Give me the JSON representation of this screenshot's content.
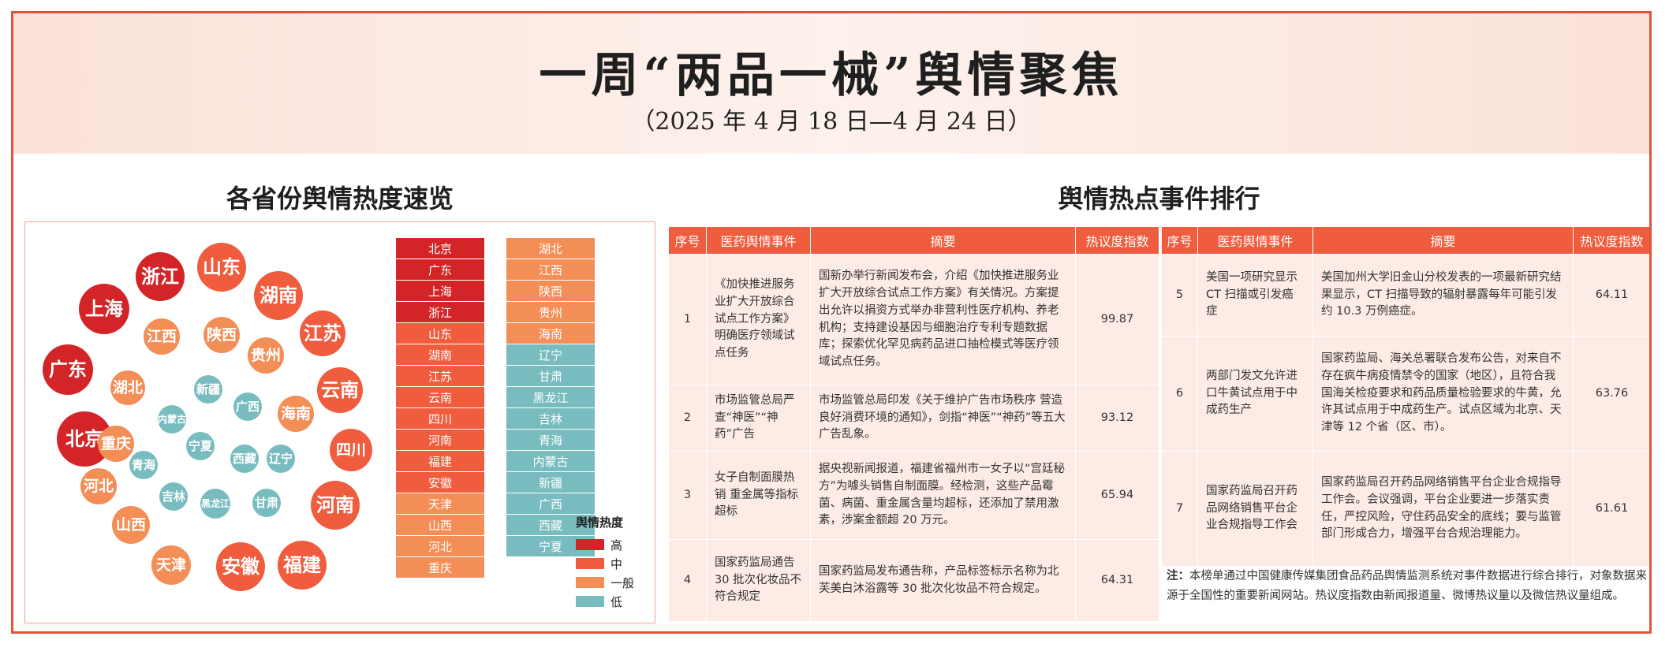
{
  "header": {
    "title": "一周“两品一械”舆情聚焦",
    "date_range": "（2025 年 4 月 18 日—4 月 24 日）"
  },
  "left": {
    "title": "各省份舆情热度速览"
  },
  "right": {
    "title": "舆情热点事件排行"
  },
  "legend": {
    "title": "舆情热度",
    "items": [
      {
        "label": "高",
        "color": "#d32528"
      },
      {
        "label": "中",
        "color": "#ef5c3e"
      },
      {
        "label": "一般",
        "color": "#f48e57"
      },
      {
        "label": "低",
        "color": "#78bcbf"
      }
    ]
  },
  "bubbles": [
    {
      "name": "北京",
      "level": "high"
    },
    {
      "name": "广东",
      "level": "high"
    },
    {
      "name": "上海",
      "level": "high"
    },
    {
      "name": "浙江",
      "level": "high"
    },
    {
      "name": "山东",
      "level": "mid"
    },
    {
      "name": "湖南",
      "level": "mid"
    },
    {
      "name": "江苏",
      "level": "mid"
    },
    {
      "name": "云南",
      "level": "mid"
    },
    {
      "name": "四川",
      "level": "mid"
    },
    {
      "name": "河南",
      "level": "mid"
    },
    {
      "name": "福建",
      "level": "mid"
    },
    {
      "name": "安徽",
      "level": "mid"
    },
    {
      "name": "天津",
      "level": "gen"
    },
    {
      "name": "山西",
      "level": "gen"
    },
    {
      "name": "河北",
      "level": "gen"
    },
    {
      "name": "重庆",
      "level": "gen"
    },
    {
      "name": "湖北",
      "level": "gen"
    },
    {
      "name": "江西",
      "level": "gen"
    },
    {
      "name": "陕西",
      "level": "gen"
    },
    {
      "name": "贵州",
      "level": "gen"
    },
    {
      "name": "海南",
      "level": "gen"
    },
    {
      "name": "辽宁",
      "level": "low"
    },
    {
      "name": "甘肃",
      "level": "low"
    },
    {
      "name": "黑龙江",
      "level": "low"
    },
    {
      "name": "吉林",
      "level": "low"
    },
    {
      "name": "青海",
      "level": "low"
    },
    {
      "name": "内蒙古",
      "level": "low"
    },
    {
      "name": "新疆",
      "level": "low"
    },
    {
      "name": "广西",
      "level": "low"
    },
    {
      "name": "西藏",
      "level": "low"
    },
    {
      "name": "宁夏",
      "level": "low"
    }
  ],
  "list1": [
    {
      "name": "北京",
      "level": "high"
    },
    {
      "name": "广东",
      "level": "high"
    },
    {
      "name": "上海",
      "level": "high"
    },
    {
      "name": "浙江",
      "level": "high"
    },
    {
      "name": "山东",
      "level": "mid"
    },
    {
      "name": "湖南",
      "level": "mid"
    },
    {
      "name": "江苏",
      "level": "mid"
    },
    {
      "name": "云南",
      "level": "mid"
    },
    {
      "name": "四川",
      "level": "mid"
    },
    {
      "name": "河南",
      "level": "mid"
    },
    {
      "name": "福建",
      "level": "mid"
    },
    {
      "name": "安徽",
      "level": "mid"
    },
    {
      "name": "天津",
      "level": "gen"
    },
    {
      "name": "山西",
      "level": "gen"
    },
    {
      "name": "河北",
      "level": "gen"
    },
    {
      "name": "重庆",
      "level": "gen"
    }
  ],
  "list2": [
    {
      "name": "湖北",
      "level": "gen"
    },
    {
      "name": "江西",
      "level": "gen"
    },
    {
      "name": "陕西",
      "level": "gen"
    },
    {
      "name": "贵州",
      "level": "gen"
    },
    {
      "name": "海南",
      "level": "gen"
    },
    {
      "name": "辽宁",
      "level": "low"
    },
    {
      "name": "甘肃",
      "level": "low"
    },
    {
      "name": "黑龙江",
      "level": "low"
    },
    {
      "name": "吉林",
      "level": "low"
    },
    {
      "name": "青海",
      "level": "low"
    },
    {
      "name": "内蒙古",
      "level": "low"
    },
    {
      "name": "新疆",
      "level": "low"
    },
    {
      "name": "广西",
      "level": "low"
    },
    {
      "name": "西藏",
      "level": "low"
    },
    {
      "name": "宁夏",
      "level": "low"
    }
  ],
  "table_headers": {
    "no": "序号",
    "event": "医药舆情事件",
    "summary": "摘要",
    "index": "热议度指数"
  },
  "events_left": [
    {
      "no": "1",
      "event": "《加快推进服务业扩大开放综合试点工作方案》明确医疗领域试点任务",
      "summary": "国新办举行新闻发布会，介绍《加快推进服务业扩大开放综合试点工作方案》有关情况。方案提出允许以捐资方式举办非营利性医疗机构、养老机构；支持建设基因与细胞治疗专利专题数据库；探索优化罕见病药品进口抽检模式等医疗领域试点任务。",
      "index": "99.87"
    },
    {
      "no": "2",
      "event": "市场监管总局严查“神医”“神药”广告",
      "summary": "市场监管总局印发《关于维护广告市场秩序 营造良好消费环境的通知》，剑指“神医”“神药”等五大广告乱象。",
      "index": "93.12"
    },
    {
      "no": "3",
      "event": "女子自制面膜热销 重金属等指标超标",
      "summary": "据央视新闻报道，福建省福州市一女子以“宫廷秘方”为噱头销售自制面膜。经检测，这些产品霉菌、病菌、重金属含量均超标，还添加了禁用激素，涉案金额超 20 万元。",
      "index": "65.94"
    },
    {
      "no": "4",
      "event": "国家药监局通告 30 批次化妆品不符合规定",
      "summary": "国家药监局发布通告称，产品标签标示名称为北芙美白沐浴露等 30 批次化妆品不符合规定。",
      "index": "64.31"
    }
  ],
  "events_right": [
    {
      "no": "5",
      "event": "美国一项研究显示 CT 扫描或引发癌症",
      "summary": "美国加州大学旧金山分校发表的一项最新研究结果显示，CT 扫描导致的辐射暴露每年可能引发约 10.3 万例癌症。",
      "index": "64.11"
    },
    {
      "no": "6",
      "event": "两部门发文允许进口牛黄试点用于中成药生产",
      "summary": "国家药监局、海关总署联合发布公告，对来自不存在疯牛病疫情禁令的国家（地区），且符合我国海关检疫要求和药品质量检验要求的牛黄，允许其试点用于中成药生产。试点区域为北京、天津等 12 个省（区、市）。",
      "index": "63.76"
    },
    {
      "no": "7",
      "event": "国家药监局召开药品网络销售平台企业合规指导工作会",
      "summary": "国家药监局召开药品网络销售平台企业合规指导工作会。会议强调，平台企业要进一步落实责任，严控风险，守住药品安全的底线；要与监管部门形成合力，增强平台合规治理能力。",
      "index": "61.61"
    }
  ],
  "note": {
    "label": "注：",
    "text": "本榜单通过中国健康传媒集团食品药品舆情监测系统对事件数据进行综合排行，对象数据来源于全国性的重要新闻网站。热议度指数由新闻报道量、微博热议量以及微信热议量组成。"
  }
}
